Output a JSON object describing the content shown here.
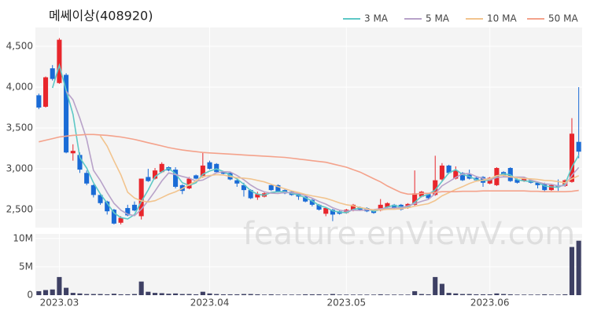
{
  "chart_data": {
    "type": "candlestick",
    "title": "메쎄이상(408920)",
    "watermark": "feature.enViewV.com",
    "categories": [
      null,
      null,
      null,
      "2023.03",
      null,
      null,
      null,
      null,
      null,
      null,
      null,
      null,
      null,
      null,
      null,
      null,
      null,
      null,
      null,
      null,
      null,
      null,
      null,
      null,
      null,
      "2023.04",
      null,
      null,
      null,
      null,
      null,
      null,
      null,
      null,
      null,
      null,
      null,
      null,
      null,
      null,
      null,
      null,
      null,
      null,
      null,
      "2023.05",
      null,
      null,
      null,
      null,
      null,
      null,
      null,
      null,
      null,
      null,
      null,
      null,
      null,
      null,
      null,
      null,
      null,
      null,
      null,
      null,
      "2023.06",
      null,
      null,
      null,
      null,
      null,
      null,
      null,
      null,
      null,
      null,
      null,
      null,
      null
    ],
    "open": [
      3900,
      3760,
      4230,
      4050,
      4150,
      3190,
      3170,
      2950,
      2800,
      2680,
      2600,
      2500,
      2340,
      2520,
      2560,
      2420,
      2900,
      2880,
      2960,
      3020,
      2990,
      2800,
      2760,
      2920,
      2900,
      3080,
      3060,
      2960,
      2950,
      2860,
      2800,
      2740,
      2650,
      2660,
      2800,
      2800,
      2740,
      2720,
      2700,
      2660,
      2620,
      2560,
      2450,
      2500,
      2480,
      2460,
      2490,
      2530,
      2520,
      2490,
      2490,
      2530,
      2560,
      2560,
      2520,
      2560,
      2660,
      2690,
      2680,
      2870,
      3040,
      2880,
      2950,
      2930,
      2890,
      2900,
      2820,
      2800,
      2960,
      3010,
      2870,
      2850,
      2860,
      2830,
      2820,
      2740,
      2800,
      2790,
      2840,
      3330
    ],
    "high": [
      3920,
      4130,
      4270,
      4600,
      4170,
      3300,
      3200,
      2980,
      2810,
      2700,
      2610,
      2510,
      2420,
      2560,
      2600,
      2880,
      3000,
      3010,
      3080,
      3030,
      3020,
      2810,
      2900,
      2930,
      3200,
      3100,
      3070,
      2970,
      2960,
      2870,
      2830,
      2750,
      2720,
      2720,
      2810,
      2810,
      2750,
      2730,
      2710,
      2670,
      2630,
      2570,
      2530,
      2510,
      2490,
      2510,
      2570,
      2540,
      2530,
      2500,
      2630,
      2590,
      2570,
      2570,
      2580,
      2980,
      2730,
      2700,
      3160,
      3070,
      3050,
      3030,
      2960,
      2990,
      2900,
      2910,
      2900,
      3020,
      2970,
      3020,
      2880,
      2890,
      2870,
      2840,
      2830,
      2810,
      2870,
      2870,
      3620,
      4000
    ],
    "low": [
      3730,
      3750,
      4080,
      4040,
      3190,
      3100,
      2950,
      2800,
      2650,
      2560,
      2440,
      2320,
      2320,
      2420,
      2480,
      2380,
      2840,
      2870,
      2950,
      2970,
      2760,
      2690,
      2750,
      2870,
      2890,
      2990,
      2950,
      2930,
      2860,
      2780,
      2660,
      2630,
      2620,
      2650,
      2730,
      2710,
      2690,
      2670,
      2620,
      2590,
      2540,
      2490,
      2420,
      2360,
      2440,
      2450,
      2480,
      2490,
      2470,
      2450,
      2480,
      2520,
      2510,
      2490,
      2510,
      2540,
      2650,
      2630,
      2670,
      2840,
      2940,
      2870,
      2850,
      2870,
      2850,
      2780,
      2810,
      2790,
      2910,
      2840,
      2820,
      2840,
      2820,
      2760,
      2720,
      2730,
      2730,
      2780,
      2830,
      3130
    ],
    "close": [
      3750,
      4120,
      4100,
      4580,
      3200,
      3220,
      2990,
      2820,
      2680,
      2580,
      2480,
      2330,
      2400,
      2430,
      2490,
      2880,
      2850,
      2980,
      3060,
      2980,
      2780,
      2730,
      2880,
      2880,
      3040,
      3000,
      2960,
      2940,
      2870,
      2820,
      2740,
      2640,
      2690,
      2700,
      2740,
      2720,
      2700,
      2680,
      2660,
      2600,
      2560,
      2500,
      2520,
      2440,
      2450,
      2500,
      2560,
      2500,
      2480,
      2460,
      2560,
      2580,
      2520,
      2500,
      2570,
      2700,
      2720,
      2640,
      2860,
      3040,
      2950,
      2980,
      2860,
      2880,
      2860,
      2830,
      2890,
      3010,
      2920,
      2850,
      2830,
      2880,
      2830,
      2800,
      2740,
      2800,
      2780,
      2860,
      3430,
      3210
    ],
    "up_color": "#e8262c",
    "down_color": "#1a6bd6",
    "ylim": [
      2280,
      4730
    ],
    "yticks": [
      {
        "value": 2500,
        "label": "2,500"
      },
      {
        "value": 3000,
        "label": "3,000"
      },
      {
        "value": 3500,
        "label": "3,500"
      },
      {
        "value": 4000,
        "label": "4,000"
      },
      {
        "value": 4500,
        "label": "4,500"
      }
    ],
    "grid": true,
    "legend": "top-right",
    "series": [
      {
        "name": "3 MA",
        "color": "#5ec8c6",
        "values": [
          null,
          null,
          3990,
          4267,
          3960,
          3667,
          3137,
          3010,
          2830,
          2693,
          2580,
          2463,
          2403,
          2387,
          2440,
          2600,
          2740,
          2903,
          2963,
          3007,
          2940,
          2830,
          2797,
          2830,
          2933,
          2973,
          3000,
          2967,
          2923,
          2877,
          2810,
          2733,
          2690,
          2677,
          2710,
          2720,
          2720,
          2700,
          2680,
          2647,
          2607,
          2553,
          2527,
          2487,
          2470,
          2463,
          2503,
          2520,
          2513,
          2480,
          2500,
          2533,
          2553,
          2533,
          2530,
          2590,
          2663,
          2687,
          2740,
          2847,
          2950,
          2990,
          2930,
          2907,
          2867,
          2857,
          2860,
          2910,
          2940,
          2927,
          2867,
          2853,
          2847,
          2837,
          2790,
          2780,
          2773,
          2813,
          3023,
          3167
        ]
      },
      {
        "name": "5 MA",
        "color": "#b8a2c9",
        "values": [
          null,
          null,
          null,
          null,
          3950,
          3844,
          3618,
          3362,
          2982,
          2858,
          2710,
          2578,
          2494,
          2444,
          2426,
          2506,
          2610,
          2726,
          2852,
          2950,
          2930,
          2906,
          2886,
          2850,
          2862,
          2906,
          2952,
          2964,
          2962,
          2918,
          2866,
          2802,
          2752,
          2718,
          2702,
          2698,
          2710,
          2708,
          2700,
          2672,
          2640,
          2600,
          2568,
          2524,
          2494,
          2482,
          2494,
          2490,
          2498,
          2500,
          2512,
          2516,
          2520,
          2524,
          2546,
          2574,
          2602,
          2626,
          2698,
          2792,
          2842,
          2894,
          2938,
          2942,
          2906,
          2882,
          2864,
          2894,
          2902,
          2900,
          2900,
          2898,
          2862,
          2838,
          2816,
          2810,
          2790,
          2796,
          2922,
          3016
        ]
      },
      {
        "name": "10 MA",
        "color": "#f2c48e",
        "values": [
          null,
          null,
          null,
          null,
          null,
          null,
          null,
          null,
          null,
          3404,
          3277,
          3098,
          2928,
          2713,
          2642,
          2608,
          2594,
          2610,
          2648,
          2688,
          2718,
          2758,
          2806,
          2851,
          2906,
          2918,
          2929,
          2925,
          2906,
          2890,
          2886,
          2877,
          2858,
          2840,
          2810,
          2782,
          2756,
          2730,
          2709,
          2687,
          2669,
          2655,
          2638,
          2612,
          2583,
          2561,
          2547,
          2529,
          2511,
          2497,
          2497,
          2505,
          2505,
          2511,
          2523,
          2543,
          2559,
          2573,
          2611,
          2669,
          2708,
          2748,
          2782,
          2820,
          2849,
          2862,
          2879,
          2916,
          2922,
          2903,
          2891,
          2881,
          2878,
          2870,
          2858,
          2855,
          2844,
          2829,
          2880,
          2916
        ]
      },
      {
        "name": "50 MA",
        "color": "#f4a28b",
        "values": [
          3330,
          3350,
          3370,
          3390,
          3400,
          3410,
          3415,
          3420,
          3420,
          3415,
          3410,
          3400,
          3390,
          3375,
          3360,
          3340,
          3320,
          3300,
          3280,
          3260,
          3245,
          3230,
          3220,
          3210,
          3200,
          3195,
          3190,
          3185,
          3180,
          3175,
          3170,
          3165,
          3160,
          3155,
          3150,
          3145,
          3140,
          3130,
          3120,
          3110,
          3100,
          3090,
          3080,
          3060,
          3040,
          3020,
          2990,
          2960,
          2920,
          2880,
          2840,
          2790,
          2750,
          2710,
          2690,
          2690,
          2700,
          2700,
          2710,
          2720,
          2720,
          2720,
          2725,
          2725,
          2725,
          2730,
          2730,
          2730,
          2730,
          2730,
          2730,
          2730,
          2725,
          2725,
          2720,
          2720,
          2720,
          2720,
          2725,
          2735
        ]
      }
    ],
    "volume": {
      "color": "#3e4064",
      "values": [
        700000,
        900000,
        1000000,
        3200000,
        1300000,
        400000,
        300000,
        200000,
        200000,
        200000,
        150000,
        250000,
        150000,
        150000,
        200000,
        2400000,
        600000,
        400000,
        350000,
        250000,
        300000,
        200000,
        200000,
        150000,
        600000,
        300000,
        200000,
        150000,
        150000,
        150000,
        200000,
        200000,
        150000,
        100000,
        150000,
        100000,
        100000,
        100000,
        100000,
        150000,
        150000,
        150000,
        100000,
        200000,
        100000,
        100000,
        100000,
        100000,
        100000,
        100000,
        150000,
        100000,
        100000,
        100000,
        100000,
        700000,
        200000,
        150000,
        3200000,
        2000000,
        400000,
        300000,
        200000,
        200000,
        150000,
        150000,
        150000,
        300000,
        200000,
        150000,
        100000,
        100000,
        100000,
        100000,
        150000,
        100000,
        100000,
        150000,
        8500000,
        9600000
      ],
      "ylim": [
        0,
        10800000
      ],
      "yticks": [
        0,
        {
          "value": 5000000,
          "label": "5M"
        },
        {
          "value": 10000000,
          "label": "10M"
        }
      ]
    }
  }
}
